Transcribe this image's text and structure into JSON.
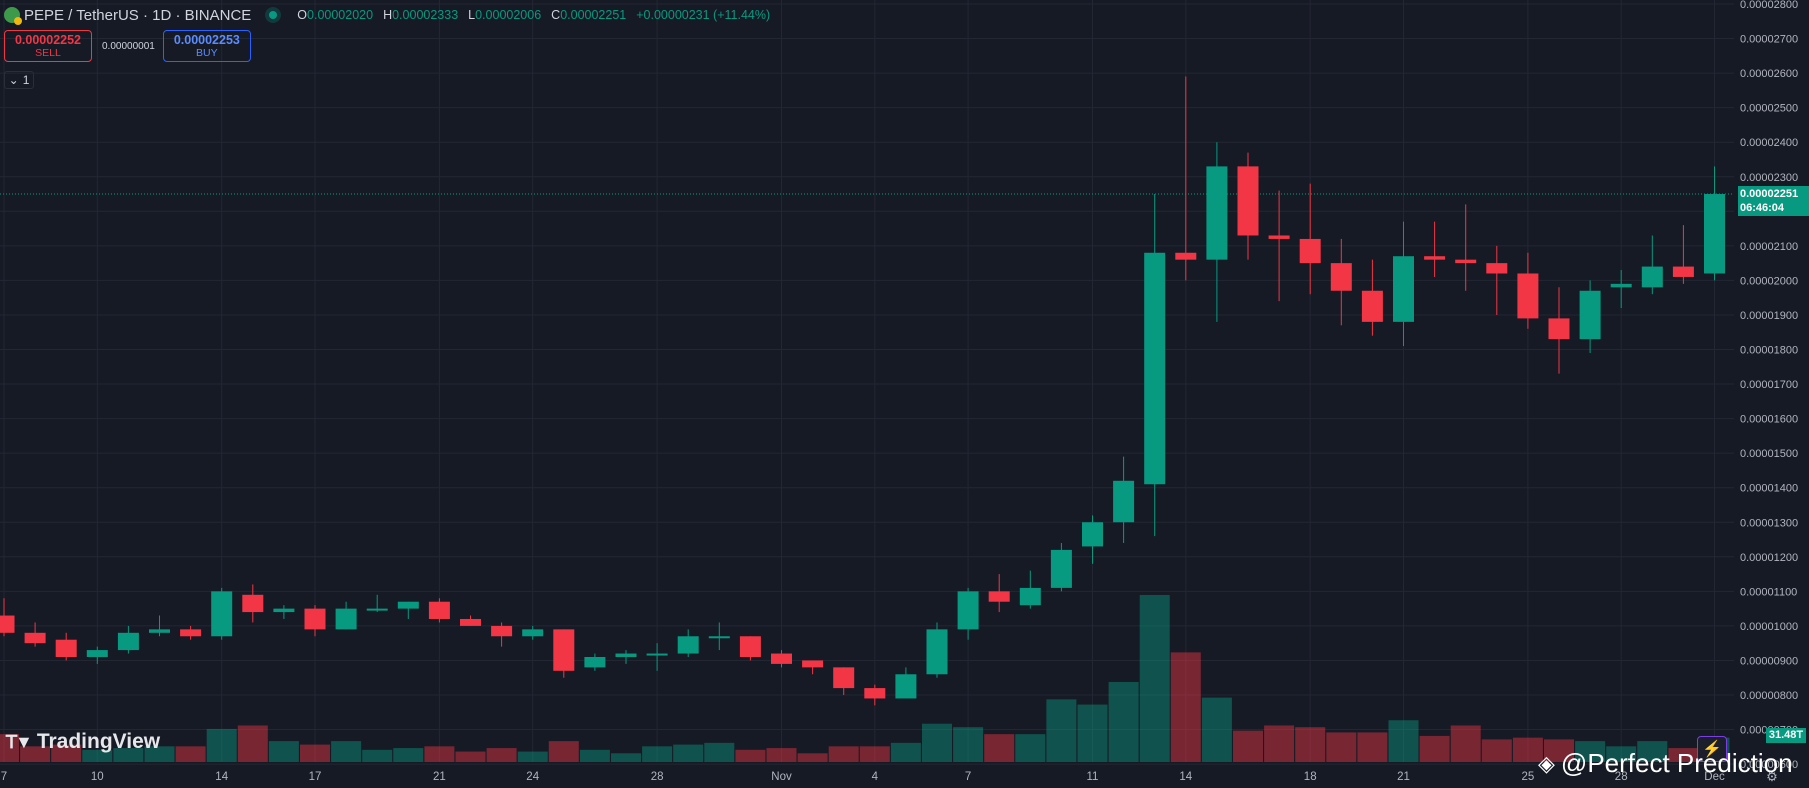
{
  "header": {
    "symbol_icon": "pepe-binance-icon",
    "title": "PEPE / TetherUS · 1D · BINANCE",
    "ohlc": {
      "o_label": "O",
      "o_value": "0.00002020",
      "h_label": "H",
      "h_value": "0.00002333",
      "l_label": "L",
      "l_value": "0.00002006",
      "c_label": "C",
      "c_value": "0.00002251",
      "change": "+0.00000231 (+11.44%)"
    }
  },
  "trade": {
    "sell_price": "0.00002252",
    "sell_label": "SELL",
    "spread": "0.00000001",
    "buy_price": "0.00002253",
    "buy_label": "BUY"
  },
  "indicators_toggle": {
    "icon": "chevron-down-icon",
    "count": "1"
  },
  "branding": {
    "logo_text": "TradingView",
    "watermark": "@Perfect Prediction"
  },
  "current_price": {
    "value": "0.00002251",
    "countdown": "06:46:04"
  },
  "current_volume": "31.48T",
  "colors": {
    "background": "#161a25",
    "up": "#089981",
    "down": "#f23645",
    "grid": "#232733",
    "text": "#b2b5be"
  },
  "chart_data": {
    "type": "candlestick",
    "y_axis": {
      "range": [
        5.8e-06,
        2.8e-05
      ],
      "ticks": [
        "0.00000600",
        "0.00000700",
        "0.00000800",
        "0.00000900",
        "0.00001000",
        "0.00001100",
        "0.00001200",
        "0.00001300",
        "0.00001400",
        "0.00001500",
        "0.00001600",
        "0.00001700",
        "0.00001800",
        "0.00001900",
        "0.00002000",
        "0.00002100",
        "0.00002200",
        "0.00002300",
        "0.00002400",
        "0.00002500",
        "0.00002600",
        "0.00002700",
        "0.00002800"
      ]
    },
    "x_axis": {
      "ticks": [
        {
          "label": "7",
          "i": 0
        },
        {
          "label": "10",
          "i": 3
        },
        {
          "label": "14",
          "i": 7
        },
        {
          "label": "17",
          "i": 10
        },
        {
          "label": "21",
          "i": 14
        },
        {
          "label": "24",
          "i": 17
        },
        {
          "label": "28",
          "i": 21
        },
        {
          "label": "Nov",
          "i": 25
        },
        {
          "label": "4",
          "i": 28
        },
        {
          "label": "7",
          "i": 31
        },
        {
          "label": "11",
          "i": 35
        },
        {
          "label": "14",
          "i": 38
        },
        {
          "label": "18",
          "i": 42
        },
        {
          "label": "21",
          "i": 45
        },
        {
          "label": "25",
          "i": 49
        },
        {
          "label": "28",
          "i": 52
        },
        {
          "label": "Dec",
          "i": 55
        }
      ]
    },
    "candles": [
      {
        "o": 1.03e-05,
        "h": 1.08e-05,
        "l": 9.7e-06,
        "c": 9.8e-06,
        "v": 1.6
      },
      {
        "o": 9.8e-06,
        "h": 1.01e-05,
        "l": 9.4e-06,
        "c": 9.5e-06,
        "v": 0.9
      },
      {
        "o": 9.6e-06,
        "h": 9.8e-06,
        "l": 9e-06,
        "c": 9.1e-06,
        "v": 1.0
      },
      {
        "o": 9.1e-06,
        "h": 9.4e-06,
        "l": 8.9e-06,
        "c": 9.3e-06,
        "v": 0.7
      },
      {
        "o": 9.3e-06,
        "h": 1e-05,
        "l": 9.2e-06,
        "c": 9.8e-06,
        "v": 0.8
      },
      {
        "o": 9.8e-06,
        "h": 1.03e-05,
        "l": 9.7e-06,
        "c": 9.9e-06,
        "v": 0.9
      },
      {
        "o": 9.9e-06,
        "h": 1e-05,
        "l": 9.6e-06,
        "c": 9.7e-06,
        "v": 0.9
      },
      {
        "o": 9.7e-06,
        "h": 1.11e-05,
        "l": 9.6e-06,
        "c": 1.1e-05,
        "v": 1.9
      },
      {
        "o": 1.09e-05,
        "h": 1.12e-05,
        "l": 1.01e-05,
        "c": 1.04e-05,
        "v": 2.1
      },
      {
        "o": 1.04e-05,
        "h": 1.06e-05,
        "l": 1.02e-05,
        "c": 1.05e-05,
        "v": 1.2
      },
      {
        "o": 1.05e-05,
        "h": 1.06e-05,
        "l": 9.7e-06,
        "c": 9.9e-06,
        "v": 1.0
      },
      {
        "o": 9.9e-06,
        "h": 1.07e-05,
        "l": 9.9e-06,
        "c": 1.05e-05,
        "v": 1.2
      },
      {
        "o": 1.05e-05,
        "h": 1.09e-05,
        "l": 1.04e-05,
        "c": 1.05e-05,
        "v": 0.7
      },
      {
        "o": 1.05e-05,
        "h": 1.07e-05,
        "l": 1.02e-05,
        "c": 1.07e-05,
        "v": 0.8
      },
      {
        "o": 1.07e-05,
        "h": 1.08e-05,
        "l": 1.01e-05,
        "c": 1.02e-05,
        "v": 0.9
      },
      {
        "o": 1.02e-05,
        "h": 1.03e-05,
        "l": 1e-05,
        "c": 1e-05,
        "v": 0.6
      },
      {
        "o": 1e-05,
        "h": 1.01e-05,
        "l": 9.4e-06,
        "c": 9.7e-06,
        "v": 0.8
      },
      {
        "o": 9.7e-06,
        "h": 1e-05,
        "l": 9.6e-06,
        "c": 9.9e-06,
        "v": 0.6
      },
      {
        "o": 9.9e-06,
        "h": 9.9e-06,
        "l": 8.5e-06,
        "c": 8.7e-06,
        "v": 1.2
      },
      {
        "o": 8.8e-06,
        "h": 9.2e-06,
        "l": 8.7e-06,
        "c": 9.1e-06,
        "v": 0.7
      },
      {
        "o": 9.1e-06,
        "h": 9.3e-06,
        "l": 8.9e-06,
        "c": 9.2e-06,
        "v": 0.5
      },
      {
        "o": 9.2e-06,
        "h": 9.5e-06,
        "l": 8.7e-06,
        "c": 9.2e-06,
        "v": 0.9
      },
      {
        "o": 9.2e-06,
        "h": 9.9e-06,
        "l": 9.1e-06,
        "c": 9.7e-06,
        "v": 1.0
      },
      {
        "o": 9.7e-06,
        "h": 1.01e-05,
        "l": 9.3e-06,
        "c": 9.7e-06,
        "v": 1.1
      },
      {
        "o": 9.7e-06,
        "h": 9.7e-06,
        "l": 9e-06,
        "c": 9.1e-06,
        "v": 0.7
      },
      {
        "o": 9.2e-06,
        "h": 9.3e-06,
        "l": 8.8e-06,
        "c": 8.9e-06,
        "v": 0.8
      },
      {
        "o": 9e-06,
        "h": 9e-06,
        "l": 8.6e-06,
        "c": 8.8e-06,
        "v": 0.5
      },
      {
        "o": 8.8e-06,
        "h": 8.8e-06,
        "l": 8e-06,
        "c": 8.2e-06,
        "v": 0.9
      },
      {
        "o": 8.2e-06,
        "h": 8.3e-06,
        "l": 7.7e-06,
        "c": 7.9e-06,
        "v": 0.9
      },
      {
        "o": 7.9e-06,
        "h": 8.8e-06,
        "l": 7.9e-06,
        "c": 8.6e-06,
        "v": 1.1
      },
      {
        "o": 8.6e-06,
        "h": 1.01e-05,
        "l": 8.5e-06,
        "c": 9.9e-06,
        "v": 2.2
      },
      {
        "o": 9.9e-06,
        "h": 1.11e-05,
        "l": 9.6e-06,
        "c": 1.1e-05,
        "v": 2.0
      },
      {
        "o": 1.1e-05,
        "h": 1.15e-05,
        "l": 1.04e-05,
        "c": 1.07e-05,
        "v": 1.6
      },
      {
        "o": 1.06e-05,
        "h": 1.16e-05,
        "l": 1.05e-05,
        "c": 1.11e-05,
        "v": 1.6
      },
      {
        "o": 1.11e-05,
        "h": 1.24e-05,
        "l": 1.1e-05,
        "c": 1.22e-05,
        "v": 3.6
      },
      {
        "o": 1.23e-05,
        "h": 1.32e-05,
        "l": 1.18e-05,
        "c": 1.3e-05,
        "v": 3.3
      },
      {
        "o": 1.3e-05,
        "h": 1.49e-05,
        "l": 1.24e-05,
        "c": 1.42e-05,
        "v": 4.6
      },
      {
        "o": 1.41e-05,
        "h": 2.25e-05,
        "l": 1.26e-05,
        "c": 2.08e-05,
        "v": 9.6
      },
      {
        "o": 2.08e-05,
        "h": 2.59e-05,
        "l": 2e-05,
        "c": 2.06e-05,
        "v": 6.3
      },
      {
        "o": 2.06e-05,
        "h": 2.4e-05,
        "l": 1.88e-05,
        "c": 2.33e-05,
        "v": 3.7
      },
      {
        "o": 2.33e-05,
        "h": 2.37e-05,
        "l": 2.06e-05,
        "c": 2.13e-05,
        "v": 1.8
      },
      {
        "o": 2.13e-05,
        "h": 2.26e-05,
        "l": 1.94e-05,
        "c": 2.12e-05,
        "v": 2.1
      },
      {
        "o": 2.12e-05,
        "h": 2.28e-05,
        "l": 1.96e-05,
        "c": 2.05e-05,
        "v": 2.0
      },
      {
        "o": 2.05e-05,
        "h": 2.12e-05,
        "l": 1.87e-05,
        "c": 1.97e-05,
        "v": 1.7
      },
      {
        "o": 1.97e-05,
        "h": 2.06e-05,
        "l": 1.84e-05,
        "c": 1.88e-05,
        "v": 1.7
      },
      {
        "o": 1.88e-05,
        "h": 2.17e-05,
        "l": 1.81e-05,
        "c": 2.07e-05,
        "v": 2.4
      },
      {
        "o": 2.07e-05,
        "h": 2.17e-05,
        "l": 2.01e-05,
        "c": 2.06e-05,
        "v": 1.5
      },
      {
        "o": 2.06e-05,
        "h": 2.22e-05,
        "l": 1.97e-05,
        "c": 2.05e-05,
        "v": 2.1
      },
      {
        "o": 2.05e-05,
        "h": 2.1e-05,
        "l": 1.9e-05,
        "c": 2.02e-05,
        "v": 1.3
      },
      {
        "o": 2.02e-05,
        "h": 2.08e-05,
        "l": 1.86e-05,
        "c": 1.89e-05,
        "v": 1.4
      },
      {
        "o": 1.89e-05,
        "h": 1.98e-05,
        "l": 1.73e-05,
        "c": 1.83e-05,
        "v": 1.3
      },
      {
        "o": 1.83e-05,
        "h": 2e-05,
        "l": 1.79e-05,
        "c": 1.97e-05,
        "v": 1.2
      },
      {
        "o": 1.98e-05,
        "h": 2.03e-05,
        "l": 1.92e-05,
        "c": 1.99e-05,
        "v": 0.9
      },
      {
        "o": 1.98e-05,
        "h": 2.13e-05,
        "l": 1.96e-05,
        "c": 2.04e-05,
        "v": 1.2
      },
      {
        "o": 2.04e-05,
        "h": 2.16e-05,
        "l": 1.99e-05,
        "c": 2.01e-05,
        "v": 0.8
      },
      {
        "o": 2.02e-05,
        "h": 2.33e-05,
        "l": 2e-05,
        "c": 2.25e-05,
        "v": 1.4
      }
    ]
  }
}
